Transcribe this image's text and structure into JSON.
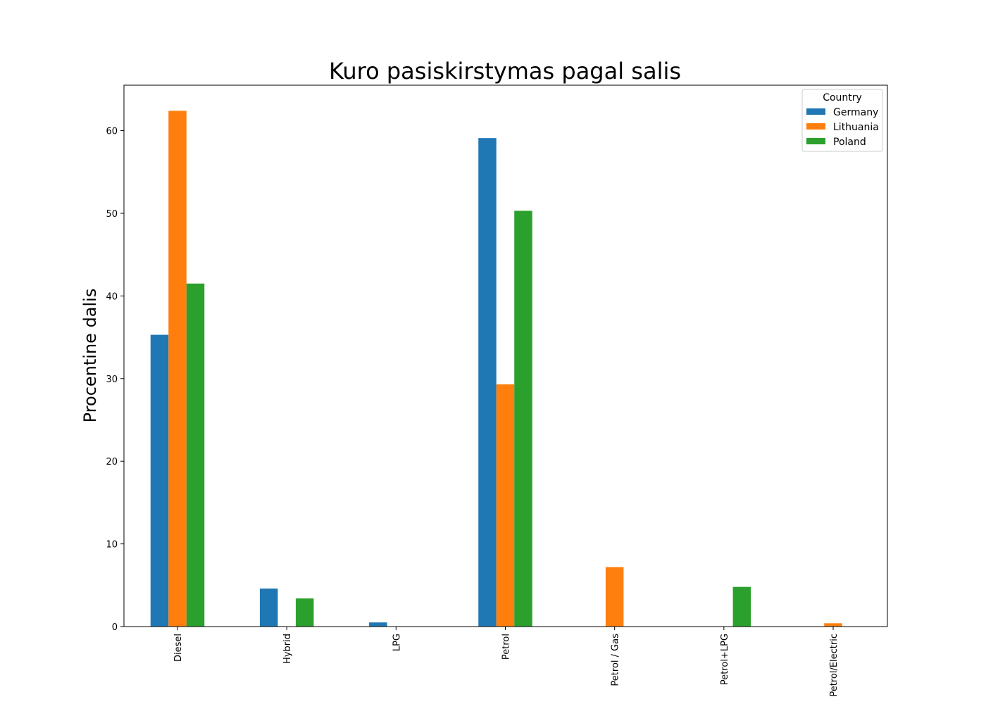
{
  "chart_data": {
    "type": "bar",
    "title": "Kuro pasiskirstymas pagal salis",
    "xlabel": "",
    "ylabel": "Procentine dalis",
    "categories": [
      "Diesel",
      "Hybrid",
      "LPG",
      "Petrol",
      "Petrol / Gas",
      "Petrol+LPG",
      "Petrol/Electric"
    ],
    "series": [
      {
        "name": "Germany",
        "color": "#1f77b4",
        "values": [
          35.3,
          4.6,
          0.5,
          59.1,
          0,
          0,
          0
        ]
      },
      {
        "name": "Lithuania",
        "color": "#ff7f0e",
        "values": [
          62.4,
          0,
          0,
          29.3,
          7.2,
          0,
          0.4
        ]
      },
      {
        "name": "Poland",
        "color": "#2ca02c",
        "values": [
          41.5,
          3.4,
          0,
          50.3,
          0,
          4.8,
          0
        ]
      }
    ],
    "ylim": [
      0,
      65.5
    ],
    "yticks": [
      0,
      10,
      20,
      30,
      40,
      50,
      60
    ],
    "grid": false,
    "legend": {
      "title": "Country",
      "placement": "top-right"
    }
  }
}
